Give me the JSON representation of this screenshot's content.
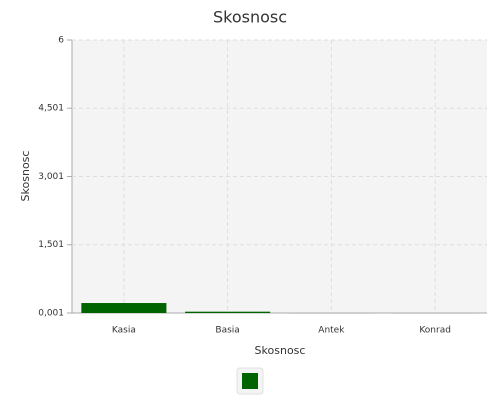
{
  "chart_data": {
    "type": "bar",
    "title": "Skosnosc",
    "x_label": "Skosnosc",
    "y_label": "Skosnosc",
    "categories": [
      "Kasia",
      "Basia",
      "Antek",
      "Konrad"
    ],
    "values": [
      0.22,
      0.03,
      0,
      0
    ],
    "color": "#006400",
    "ylim": [
      0.001,
      6
    ],
    "yticks": [
      {
        "value": 0.001,
        "label": "0,001"
      },
      {
        "value": 1.501,
        "label": "1,501"
      },
      {
        "value": 3.001,
        "label": "3,001"
      },
      {
        "value": 4.501,
        "label": "4,501"
      },
      6
    ],
    "grid": true,
    "legend": "bottom"
  }
}
